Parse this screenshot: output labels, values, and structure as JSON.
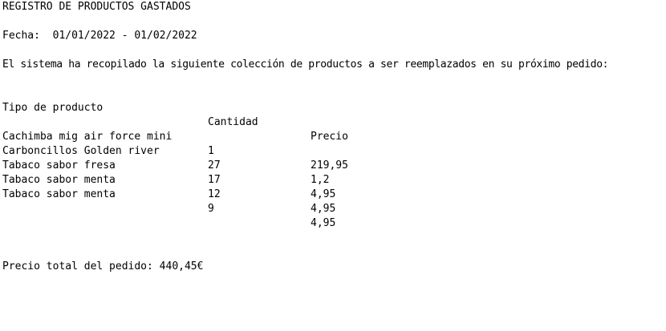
{
  "document": {
    "title": "REGISTRO DE PRODUCTOS GASTADOS",
    "date_line": "Fecha:  01/01/2022 - 01/02/2022",
    "intro": "El sistema ha recopilado la siguiente colección de productos a ser reemplazados en su próximo pedido:",
    "table": {
      "headers": {
        "product": "Tipo de producto",
        "quantity": "Cantidad",
        "price": "Precio"
      },
      "rows": [
        {
          "product": "Cachimba mig air force mini",
          "quantity": "1",
          "price": "219,95"
        },
        {
          "product": "Carboncillos Golden river",
          "quantity": "27",
          "price": "1,2"
        },
        {
          "product": "Tabaco sabor fresa",
          "quantity": "17",
          "price": "4,95"
        },
        {
          "product": "Tabaco sabor menta",
          "quantity": "12",
          "price": "4,95"
        },
        {
          "product": "Tabaco sabor menta",
          "quantity": "9",
          "price": "4,95"
        }
      ]
    },
    "total_line": "Precio total del pedido: 440,45€"
  }
}
